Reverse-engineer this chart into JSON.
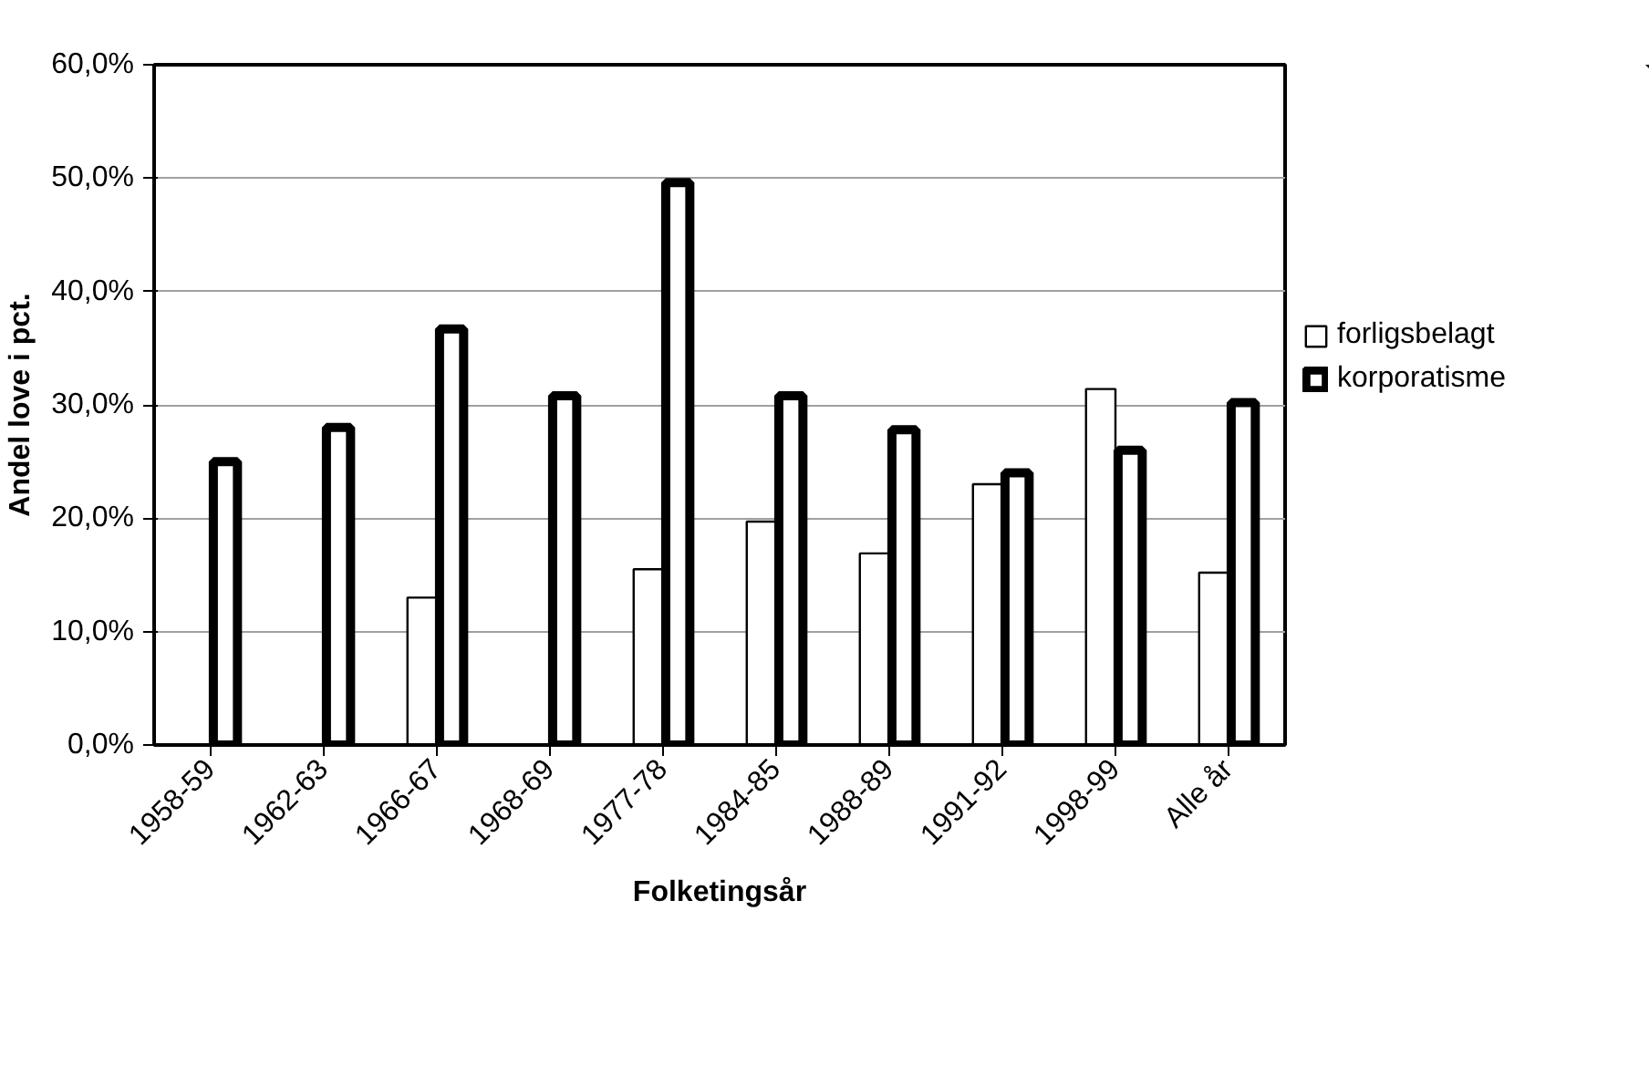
{
  "chart_data": {
    "type": "bar",
    "xlabel": "Folketingsår",
    "ylabel": "Andel love i pct.",
    "categories": [
      "1958-59",
      "1962-63",
      "1966-67",
      "1968-69",
      "1977-78",
      "1984-85",
      "1988-89",
      "1991-92",
      "1998-99",
      "Alle år"
    ],
    "series": [
      {
        "name": "forligsbelagt",
        "color": "#ffffff",
        "values": [
          null,
          null,
          13.0,
          null,
          15.5,
          19.7,
          16.9,
          23.0,
          31.4,
          15.2
        ]
      },
      {
        "name": "korporatisme",
        "color": "#000000",
        "values": [
          25.0,
          28.0,
          36.7,
          30.8,
          49.6,
          30.8,
          27.8,
          24.0,
          26.0,
          30.2
        ]
      }
    ],
    "ylim": [
      0,
      60
    ],
    "yticks": [
      {
        "value": 0,
        "label": "0,0%"
      },
      {
        "value": 10,
        "label": "10,0%"
      },
      {
        "value": 20,
        "label": "20,0%"
      },
      {
        "value": 30,
        "label": "30,0%"
      },
      {
        "value": 40,
        "label": "40,0%"
      },
      {
        "value": 50,
        "label": "50,0%"
      },
      {
        "value": 60,
        "label": "60,0%"
      }
    ],
    "grid": "y",
    "legend": "right"
  }
}
